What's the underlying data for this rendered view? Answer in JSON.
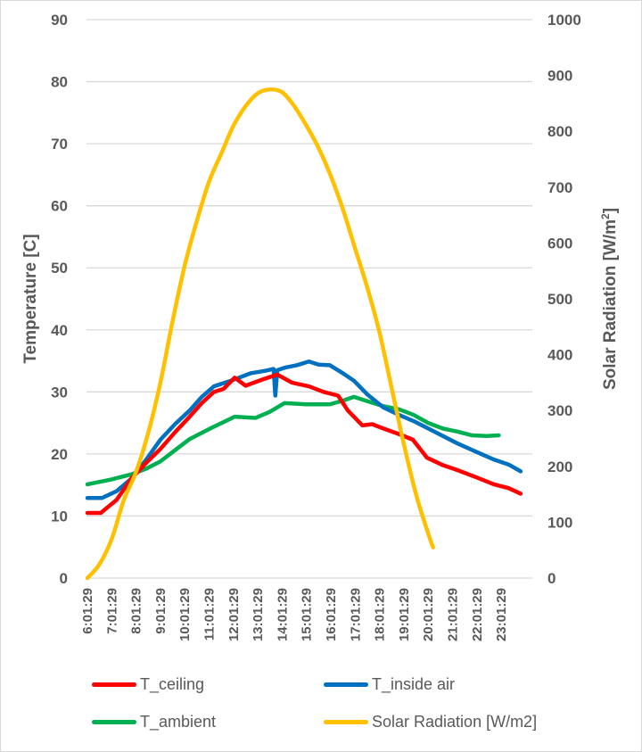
{
  "chart_data": {
    "type": "line",
    "xlabel": "",
    "ylabel": "Temperature [C]",
    "y2label": "Solar Radiation [W/m2]",
    "y2label_display": {
      "base": "Solar Radiation [W/m",
      "sup": "2",
      "end": "]"
    },
    "ylim": [
      0,
      90
    ],
    "y2lim": [
      0,
      1000
    ],
    "yticks": [
      "0",
      "10",
      "20",
      "30",
      "40",
      "50",
      "60",
      "70",
      "80",
      "90"
    ],
    "y2ticks": [
      "0",
      "100",
      "200",
      "300",
      "400",
      "500",
      "600",
      "700",
      "800",
      "900",
      "1000"
    ],
    "xticks": [
      "6:01:29",
      "7:01:29",
      "8:01:29",
      "9:01:29",
      "10:01:29",
      "11:01:29",
      "12:01:29",
      "13:01:29",
      "14:01:29",
      "15:01:29",
      "16:01:29",
      "17:01:29",
      "18:01:29",
      "19:01:29",
      "20:01:29",
      "21:01:29",
      "22:01:29",
      "23:01:29"
    ],
    "x_unit": "hour of day",
    "grid": true,
    "legend_position": "bottom",
    "series": [
      {
        "name": "T_ceiling",
        "axis": "left",
        "color": "#FF0000",
        "x": [
          6.0,
          6.55,
          7.2,
          7.8,
          8.4,
          9.0,
          9.6,
          10.2,
          10.7,
          11.2,
          11.6,
          12.05,
          12.5,
          13.2,
          13.8,
          14.4,
          15.1,
          15.7,
          16.3,
          16.7,
          17.3,
          17.7,
          18.16,
          18.8,
          19.37,
          19.95,
          20.6,
          21.2,
          22.0,
          22.7,
          23.3,
          23.8
        ],
        "y": [
          10.5,
          10.5,
          12.6,
          16.0,
          18.5,
          20.8,
          23.5,
          26.0,
          28.2,
          30.0,
          30.5,
          32.3,
          31.0,
          32.0,
          32.8,
          31.5,
          30.9,
          30.0,
          29.4,
          27.0,
          24.6,
          24.8,
          24.1,
          23.2,
          22.3,
          19.4,
          18.2,
          17.4,
          16.2,
          15.1,
          14.5,
          13.6
        ]
      },
      {
        "name": "T_inside air",
        "axis": "left",
        "color": "#0070C0",
        "x": [
          6.0,
          6.6,
          7.2,
          7.8,
          8.4,
          9.0,
          9.6,
          10.2,
          10.7,
          11.2,
          11.9,
          12.7,
          13.3,
          13.65,
          13.72,
          13.8,
          14.1,
          14.6,
          15.1,
          15.5,
          15.96,
          16.5,
          16.95,
          17.5,
          18.16,
          18.8,
          19.4,
          20.3,
          21.2,
          22.0,
          22.7,
          23.3,
          23.8
        ],
        "y": [
          12.9,
          12.9,
          14.0,
          16.0,
          19.0,
          22.3,
          24.8,
          27.0,
          29.2,
          30.9,
          31.8,
          33.0,
          33.4,
          33.7,
          29.4,
          33.5,
          33.9,
          34.3,
          34.9,
          34.4,
          34.3,
          33.0,
          31.8,
          29.6,
          27.5,
          26.3,
          25.3,
          23.5,
          21.7,
          20.3,
          19.1,
          18.3,
          17.2
        ]
      },
      {
        "name": "T_ambient",
        "axis": "left",
        "color": "#00B050",
        "x": [
          6.0,
          7.0,
          7.8,
          8.4,
          9.0,
          9.6,
          10.2,
          11.1,
          12.05,
          12.9,
          13.5,
          14.1,
          15.0,
          15.96,
          16.5,
          16.95,
          17.5,
          18.16,
          18.8,
          19.4,
          20.0,
          20.6,
          21.2,
          21.8,
          22.4,
          22.9
        ],
        "y": [
          15.1,
          15.9,
          16.7,
          17.6,
          18.8,
          20.6,
          22.4,
          24.2,
          26.0,
          25.8,
          26.8,
          28.2,
          28.0,
          28.0,
          28.6,
          29.2,
          28.5,
          27.7,
          27.2,
          26.3,
          25.0,
          24.1,
          23.6,
          23.0,
          22.9,
          23.0
        ]
      },
      {
        "name": "Solar Radiation [W/m2]",
        "axis": "right",
        "color": "#FFC000",
        "x": [
          6.0,
          6.5,
          7.0,
          7.5,
          8.0,
          8.5,
          9.0,
          9.5,
          10.0,
          10.5,
          11.0,
          11.5,
          12.0,
          12.5,
          13.0,
          13.5,
          14.0,
          14.5,
          15.0,
          15.5,
          16.0,
          16.5,
          17.0,
          17.5,
          18.0,
          18.5,
          19.0,
          19.5,
          20.0,
          20.2
        ],
        "y": [
          0,
          25,
          70,
          140,
          190,
          260,
          350,
          460,
          560,
          640,
          710,
          760,
          810,
          845,
          868,
          875,
          870,
          845,
          810,
          770,
          720,
          660,
          590,
          520,
          440,
          340,
          240,
          150,
          80,
          55
        ]
      }
    ]
  },
  "legend": [
    {
      "label": "T_ceiling",
      "color": "#FF0000"
    },
    {
      "label": "T_inside air",
      "color": "#0070C0"
    },
    {
      "label": "T_ambient",
      "color": "#00B050"
    },
    {
      "label": "Solar Radiation [W/m2]",
      "color": "#FFC000"
    }
  ]
}
